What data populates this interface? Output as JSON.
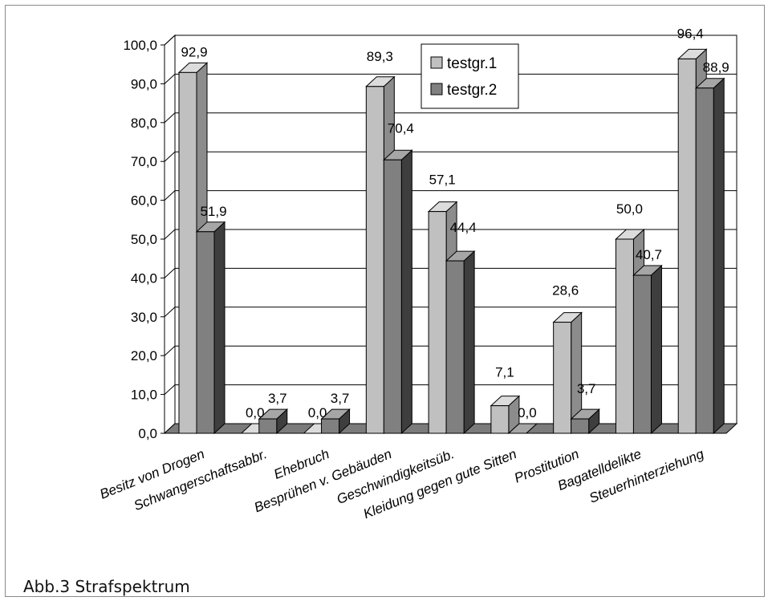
{
  "caption": "Abb.3 Strafspektrum",
  "chart_data": {
    "type": "bar",
    "title": "",
    "xlabel": "",
    "ylabel": "",
    "ylim": [
      0,
      100
    ],
    "yticks": [
      "0,0",
      "10,0",
      "20,0",
      "30,0",
      "40,0",
      "50,0",
      "60,0",
      "70,0",
      "80,0",
      "90,0",
      "100,0"
    ],
    "categories": [
      "Besitz von Drogen",
      "Schwangerschaftsabbr.",
      "Ehebruch",
      "Besprühen v. Gebäuden",
      "Geschwindigkeitsüb.",
      "Kleidung gegen gute Sitten",
      "Prostitution",
      "Bagatelldelikte",
      "Steuerhinterziehung"
    ],
    "series": [
      {
        "name": "testgr.1",
        "values": [
          92.9,
          0.0,
          0.0,
          89.3,
          57.1,
          7.1,
          28.6,
          50.0,
          96.4
        ],
        "labels": [
          "92,9",
          "0,0",
          "0,0",
          "89,3",
          "57,1",
          "7,1",
          "28,6",
          "50,0",
          "96,4"
        ]
      },
      {
        "name": "testgr.2",
        "values": [
          51.9,
          3.7,
          3.7,
          70.4,
          44.4,
          0.0,
          3.7,
          40.7,
          88.9
        ],
        "labels": [
          "51,9",
          "3,7",
          "3,7",
          "70,4",
          "44,4",
          "0,0",
          "3,7",
          "40,7",
          "88,9"
        ]
      }
    ],
    "legend_position": "top-center",
    "grid": true,
    "style": "3d",
    "colors": {
      "series1_front": "#c0c0c0",
      "series1_side": "#8c8c8c",
      "series1_top": "#dcdcdc",
      "series2_front": "#808080",
      "series2_side": "#3e3e3e",
      "series2_top": "#a6a6a6",
      "floor": "#7b7b7b"
    }
  }
}
